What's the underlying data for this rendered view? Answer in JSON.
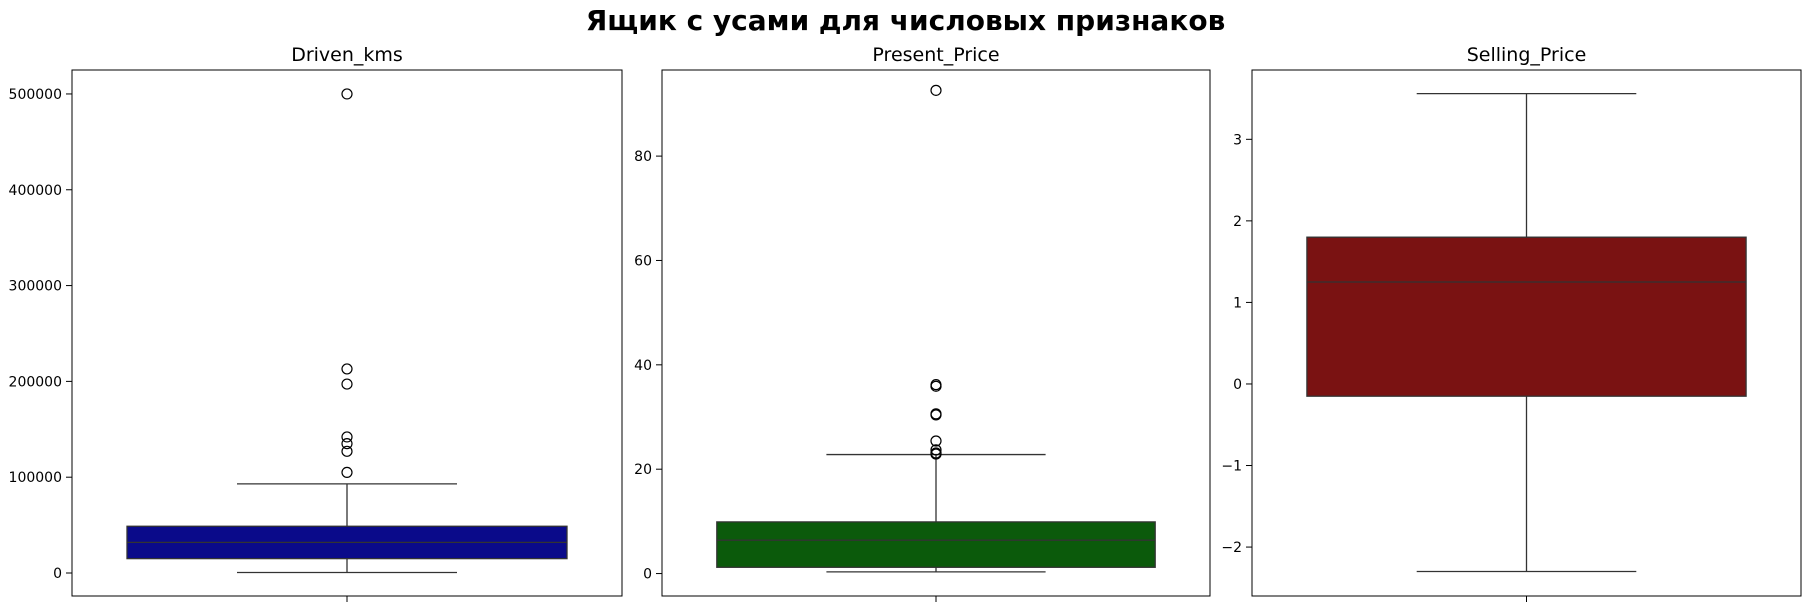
{
  "figure": {
    "suptitle": "Ящик с усами для числовых признаков"
  },
  "chart_data": [
    {
      "type": "box",
      "title": "Driven_kms",
      "color": "#0a0a8a",
      "ylim": [
        -24000,
        525000
      ],
      "yticks": [
        0,
        100000,
        200000,
        300000,
        400000,
        500000
      ],
      "ytick_labels": [
        "0",
        "100000",
        "200000",
        "300000",
        "400000",
        "500000"
      ],
      "box": {
        "whisker_low": 500,
        "q1": 15000,
        "median": 32000,
        "q3": 48800,
        "whisker_high": 93000
      },
      "outliers": [
        500000,
        213000,
        197200,
        142000,
        135000,
        127000,
        105000
      ]
    },
    {
      "type": "box",
      "title": "Present_Price",
      "color": "#0b5a0b",
      "ylim": [
        -4.3,
        96.5
      ],
      "yticks": [
        0,
        20,
        40,
        60,
        80
      ],
      "ytick_labels": [
        "0",
        "20",
        "40",
        "60",
        "80"
      ],
      "box": {
        "whisker_low": 0.32,
        "q1": 1.2,
        "median": 6.4,
        "q3": 9.9,
        "whisker_high": 22.8
      },
      "outliers": [
        92.6,
        36.2,
        35.9,
        30.6,
        30.4,
        25.4,
        23.7,
        23.1,
        22.9
      ]
    },
    {
      "type": "box",
      "title": "Selling_Price",
      "color": "#7a1212",
      "ylim": [
        -2.6,
        3.85
      ],
      "yticks": [
        -2,
        -1,
        0,
        1,
        2,
        3
      ],
      "ytick_labels": [
        "−2",
        "−1",
        "0",
        "1",
        "2",
        "3"
      ],
      "box": {
        "whisker_low": -2.3,
        "q1": -0.15,
        "median": 1.25,
        "q3": 1.8,
        "whisker_high": 3.56
      },
      "outliers": []
    }
  ]
}
